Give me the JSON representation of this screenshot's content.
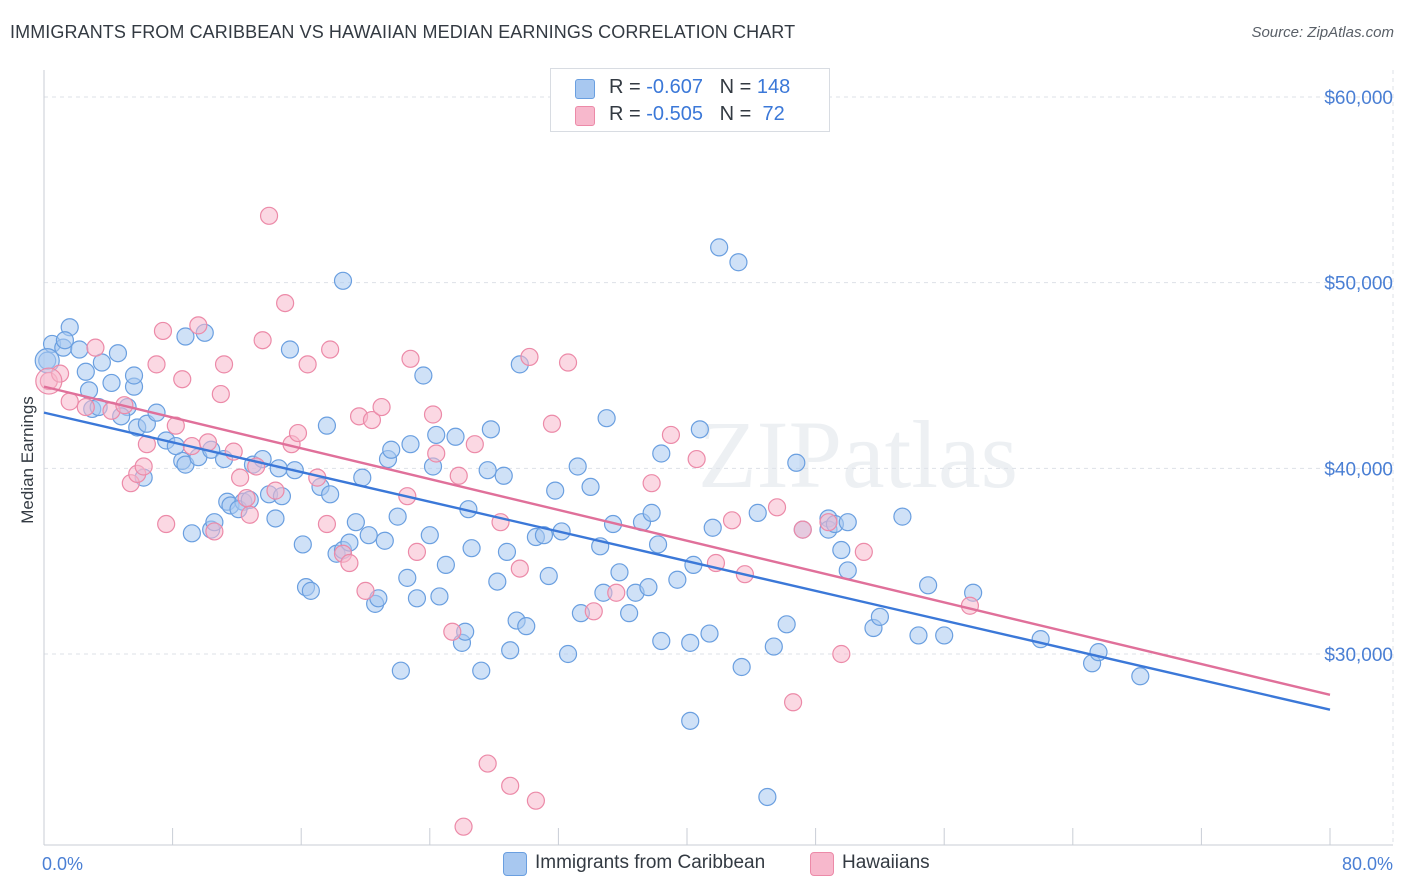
{
  "title": "IMMIGRANTS FROM CARIBBEAN VS HAWAIIAN MEDIAN EARNINGS CORRELATION CHART",
  "source": "Source: ZipAtlas.com",
  "watermark": "ZIPatlas",
  "legend": {
    "rows": [
      {
        "r_label": "R = ",
        "r_value": "-0.607",
        "n_label": "N = ",
        "n_value": "148",
        "color": "#a8c8f0",
        "border": "#6a9fe0"
      },
      {
        "r_label": "R = ",
        "r_value": "-0.505",
        "n_label": "N = ",
        "n_value": " 72",
        "color": "#f7b8cc",
        "border": "#ec8aa8"
      }
    ]
  },
  "bottom_legend": [
    "Immigrants from Caribbean",
    "Hawaiians"
  ],
  "chart_data": {
    "type": "scatter",
    "title": "IMMIGRANTS FROM CARIBBEAN VS HAWAIIAN MEDIAN EARNINGS CORRELATION CHART",
    "ylabel": "Median Earnings",
    "xlabel": "",
    "x_tick_labels": [
      "0.0%",
      "80.0%"
    ],
    "y_tick_labels": [
      "$30,000",
      "$40,000",
      "$50,000",
      "$60,000"
    ],
    "y_ticks": [
      30000,
      40000,
      50000,
      60000
    ],
    "xlim": [
      0,
      80
    ],
    "ylim": [
      20000,
      62000
    ],
    "grid": true,
    "legend_position": "top-center",
    "series": [
      {
        "name": "Immigrants from Caribbean",
        "color": "#a8c8f0",
        "stroke": "#6a9fe0",
        "line_color": "#3b78d8",
        "trend": [
          [
            0,
            43000
          ],
          [
            80,
            27000
          ]
        ],
        "points": [
          [
            0.2,
            45.8
          ],
          [
            0.5,
            46.7
          ],
          [
            1.2,
            46.5
          ],
          [
            1.6,
            47.6
          ],
          [
            1.3,
            46.9
          ],
          [
            2.2,
            46.4
          ],
          [
            2.8,
            44.2
          ],
          [
            3,
            43.2
          ],
          [
            2.6,
            45.2
          ],
          [
            3.6,
            45.7
          ],
          [
            4.6,
            46.2
          ],
          [
            4.2,
            44.6
          ],
          [
            3.4,
            43.3
          ],
          [
            5.2,
            43.3
          ],
          [
            4.8,
            42.8
          ],
          [
            5.6,
            44.4
          ],
          [
            5.8,
            42.2
          ],
          [
            5.6,
            45
          ],
          [
            6.4,
            42.4
          ],
          [
            7,
            43
          ],
          [
            7.6,
            41.5
          ],
          [
            8.6,
            40.4
          ],
          [
            8.2,
            41.2
          ],
          [
            8.8,
            47.1
          ],
          [
            10,
            47.3
          ],
          [
            8.8,
            40.2
          ],
          [
            9.6,
            40.6
          ],
          [
            10.4,
            41
          ],
          [
            11.2,
            40.5
          ],
          [
            11.4,
            38.2
          ],
          [
            11.6,
            38
          ],
          [
            12.4,
            38.2
          ],
          [
            13,
            40.2
          ],
          [
            13.6,
            40.5
          ],
          [
            14,
            38.6
          ],
          [
            14.4,
            37.3
          ],
          [
            14.6,
            40
          ],
          [
            14.8,
            38.5
          ],
          [
            15.6,
            39.9
          ],
          [
            6.2,
            39.5
          ],
          [
            9.2,
            36.5
          ],
          [
            10.4,
            36.7
          ],
          [
            10.6,
            37.1
          ],
          [
            12.1,
            37.8
          ],
          [
            12.8,
            38.3
          ],
          [
            15.3,
            46.4
          ],
          [
            16.1,
            35.9
          ],
          [
            16.3,
            33.6
          ],
          [
            16.6,
            33.4
          ],
          [
            17.2,
            39
          ],
          [
            17.6,
            42.3
          ],
          [
            17.8,
            38.6
          ],
          [
            18.2,
            35.4
          ],
          [
            18.6,
            35.6
          ],
          [
            18.6,
            50.1
          ],
          [
            19,
            36
          ],
          [
            19.4,
            37.1
          ],
          [
            19.8,
            39.5
          ],
          [
            20.2,
            36.4
          ],
          [
            20.6,
            32.7
          ],
          [
            20.8,
            33
          ],
          [
            21.2,
            36.1
          ],
          [
            21.4,
            40.5
          ],
          [
            21.6,
            41
          ],
          [
            22,
            37.4
          ],
          [
            22.2,
            29.1
          ],
          [
            22.6,
            34.1
          ],
          [
            22.8,
            41.3
          ],
          [
            23.2,
            33
          ],
          [
            23.6,
            45
          ],
          [
            24,
            36.4
          ],
          [
            24.2,
            40.1
          ],
          [
            24.4,
            41.8
          ],
          [
            24.6,
            33.1
          ],
          [
            25,
            34.8
          ],
          [
            25.6,
            41.7
          ],
          [
            26,
            30.6
          ],
          [
            26.2,
            31.2
          ],
          [
            26.6,
            35.7
          ],
          [
            26.4,
            37.8
          ],
          [
            27.2,
            29.1
          ],
          [
            27.6,
            39.9
          ],
          [
            27.8,
            42.1
          ],
          [
            28.2,
            33.9
          ],
          [
            28.6,
            39.6
          ],
          [
            28.8,
            35.5
          ],
          [
            29,
            30.2
          ],
          [
            29.4,
            31.8
          ],
          [
            29.6,
            45.6
          ],
          [
            30,
            31.5
          ],
          [
            30.6,
            36.3
          ],
          [
            31.1,
            36.4
          ],
          [
            31.4,
            34.2
          ],
          [
            31.8,
            38.8
          ],
          [
            32.2,
            36.6
          ],
          [
            32.6,
            30
          ],
          [
            33.4,
            32.2
          ],
          [
            33.2,
            40.1
          ],
          [
            34,
            39
          ],
          [
            34.6,
            35.8
          ],
          [
            35,
            42.7
          ],
          [
            35.4,
            37
          ],
          [
            35.8,
            34.4
          ],
          [
            36.4,
            32.2
          ],
          [
            36.8,
            33.3
          ],
          [
            37.2,
            37.1
          ],
          [
            37.6,
            33.6
          ],
          [
            37.8,
            37.6
          ],
          [
            38.4,
            30.7
          ],
          [
            38.4,
            40.8
          ],
          [
            38.2,
            35.9
          ],
          [
            39.4,
            34
          ],
          [
            40.2,
            30.6
          ],
          [
            40.4,
            34.8
          ],
          [
            40.8,
            42.1
          ],
          [
            41.4,
            31.1
          ],
          [
            41.6,
            36.8
          ],
          [
            42,
            51.9
          ],
          [
            43.2,
            51.1
          ],
          [
            43.4,
            29.3
          ],
          [
            44.4,
            37.6
          ],
          [
            45.4,
            30.4
          ],
          [
            46.2,
            31.6
          ],
          [
            46.8,
            40.3
          ],
          [
            47.2,
            36.7
          ],
          [
            48.8,
            37.3
          ],
          [
            48.8,
            36.7
          ],
          [
            49.2,
            37
          ],
          [
            49.6,
            35.6
          ],
          [
            50,
            34.5
          ],
          [
            50,
            37.1
          ],
          [
            51.6,
            31.4
          ],
          [
            52,
            32
          ],
          [
            53.4,
            37.4
          ],
          [
            54.4,
            31
          ],
          [
            55,
            33.7
          ],
          [
            56,
            31
          ],
          [
            57.8,
            33.3
          ],
          [
            62,
            30.8
          ],
          [
            65.2,
            29.5
          ],
          [
            65.6,
            30.1
          ],
          [
            68.2,
            28.8
          ],
          [
            45,
            22.3
          ],
          [
            40.2,
            26.4
          ],
          [
            34.8,
            33.3
          ]
        ]
      },
      {
        "name": "Hawaiians",
        "color": "#f7b8cc",
        "stroke": "#ec8aa8",
        "line_color": "#e0709a",
        "trend": [
          [
            0,
            44400
          ],
          [
            80,
            27800
          ]
        ],
        "points": [
          [
            0.3,
            44.7
          ],
          [
            1,
            45.1
          ],
          [
            1.6,
            43.6
          ],
          [
            2.6,
            43.3
          ],
          [
            3.2,
            46.5
          ],
          [
            4.2,
            43.1
          ],
          [
            5,
            43.4
          ],
          [
            5.4,
            39.2
          ],
          [
            5.8,
            39.7
          ],
          [
            6.2,
            40.1
          ],
          [
            6.4,
            41.3
          ],
          [
            7,
            45.6
          ],
          [
            7.4,
            47.4
          ],
          [
            7.6,
            37
          ],
          [
            8.2,
            42.3
          ],
          [
            8.6,
            44.8
          ],
          [
            9.2,
            41.2
          ],
          [
            9.6,
            47.7
          ],
          [
            10.2,
            41.4
          ],
          [
            10.6,
            36.6
          ],
          [
            11,
            44
          ],
          [
            11.2,
            45.6
          ],
          [
            11.8,
            40.9
          ],
          [
            12.2,
            39.5
          ],
          [
            12.6,
            38.4
          ],
          [
            12.8,
            37.5
          ],
          [
            13.2,
            40.1
          ],
          [
            13.6,
            46.9
          ],
          [
            14,
            53.6
          ],
          [
            14.4,
            38.8
          ],
          [
            15,
            48.9
          ],
          [
            15.4,
            41.3
          ],
          [
            15.8,
            41.9
          ],
          [
            16.4,
            45.6
          ],
          [
            17,
            39.5
          ],
          [
            17.6,
            37
          ],
          [
            17.8,
            46.4
          ],
          [
            18.6,
            35.4
          ],
          [
            19,
            34.9
          ],
          [
            19.6,
            42.8
          ],
          [
            20,
            33.4
          ],
          [
            20.4,
            42.6
          ],
          [
            21,
            43.3
          ],
          [
            22.6,
            38.5
          ],
          [
            22.8,
            45.9
          ],
          [
            23.2,
            35.5
          ],
          [
            24.2,
            42.9
          ],
          [
            24.4,
            40.8
          ],
          [
            25.4,
            31.2
          ],
          [
            25.8,
            39.6
          ],
          [
            26.8,
            41.3
          ],
          [
            28.4,
            37.1
          ],
          [
            29.6,
            34.6
          ],
          [
            30.2,
            46
          ],
          [
            31.6,
            42.4
          ],
          [
            32.6,
            45.7
          ],
          [
            34.2,
            32.3
          ],
          [
            35.6,
            33.3
          ],
          [
            37.8,
            39.2
          ],
          [
            39,
            41.8
          ],
          [
            40.6,
            40.5
          ],
          [
            41.8,
            34.9
          ],
          [
            42.8,
            37.2
          ],
          [
            43.6,
            34.3
          ],
          [
            45.6,
            37.9
          ],
          [
            46.6,
            27.4
          ],
          [
            47.2,
            36.7
          ],
          [
            48.8,
            37.1
          ],
          [
            49.6,
            30
          ],
          [
            51,
            35.5
          ],
          [
            57.6,
            32.6
          ],
          [
            27.6,
            24.1
          ],
          [
            29,
            22.9
          ],
          [
            30.6,
            22.1
          ],
          [
            26.1,
            20.7
          ]
        ]
      }
    ]
  }
}
